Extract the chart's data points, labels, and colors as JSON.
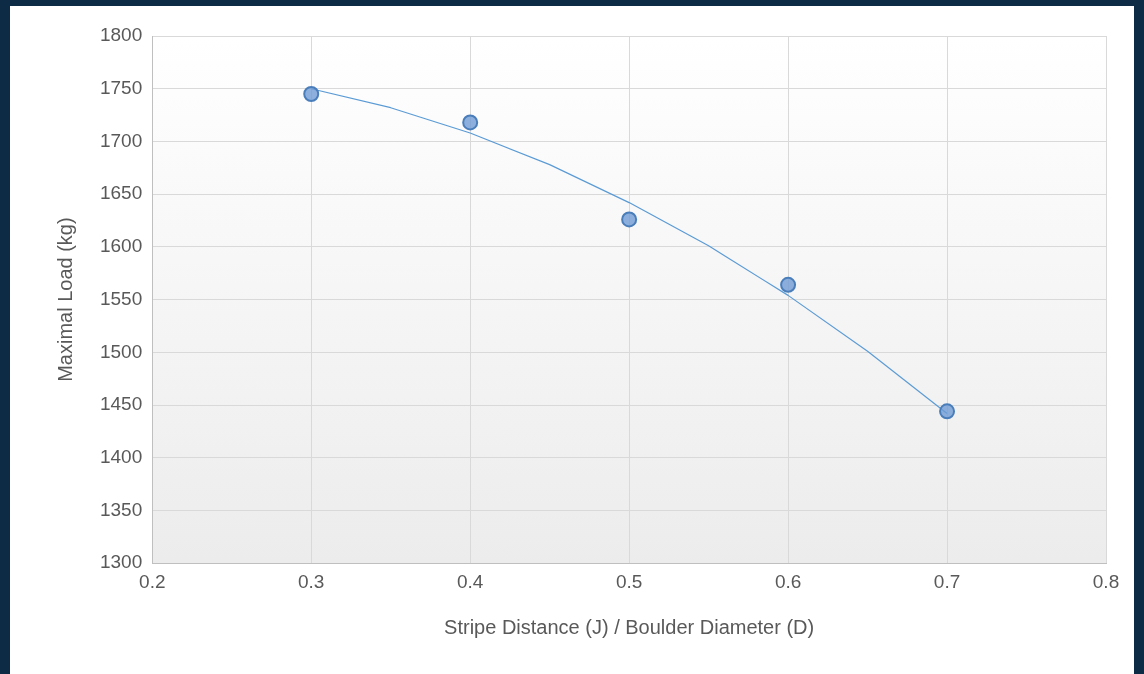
{
  "chart_data": {
    "type": "scatter",
    "xlabel": "Stripe Distance (J) / Boulder Diameter (D)",
    "ylabel": "Maximal Load (kg)",
    "x": [
      0.3,
      0.4,
      0.5,
      0.6,
      0.7
    ],
    "series": [
      {
        "color": "#6f9bd6",
        "values": [
          1745,
          1718,
          1626,
          1564,
          1444
        ],
        "marker": "circle"
      },
      {
        "type": "line",
        "color": "#5b9bd5",
        "x": [
          0.3,
          0.35,
          0.4,
          0.45,
          0.5,
          0.55,
          0.6,
          0.65,
          0.7
        ],
        "values": [
          1750,
          1732,
          1708,
          1678,
          1642,
          1601,
          1554,
          1501,
          1442
        ],
        "marker": "none",
        "line_style": "solid"
      }
    ],
    "xlim": [
      0.2,
      0.8
    ],
    "xticks": [
      0.2,
      0.3,
      0.4,
      0.5,
      0.6,
      0.7,
      0.8
    ],
    "ylim": [
      1300,
      1800
    ],
    "yticks": [
      1300,
      1350,
      1400,
      1450,
      1500,
      1550,
      1600,
      1650,
      1700,
      1750,
      1800
    ],
    "grid": true,
    "legend": false
  }
}
